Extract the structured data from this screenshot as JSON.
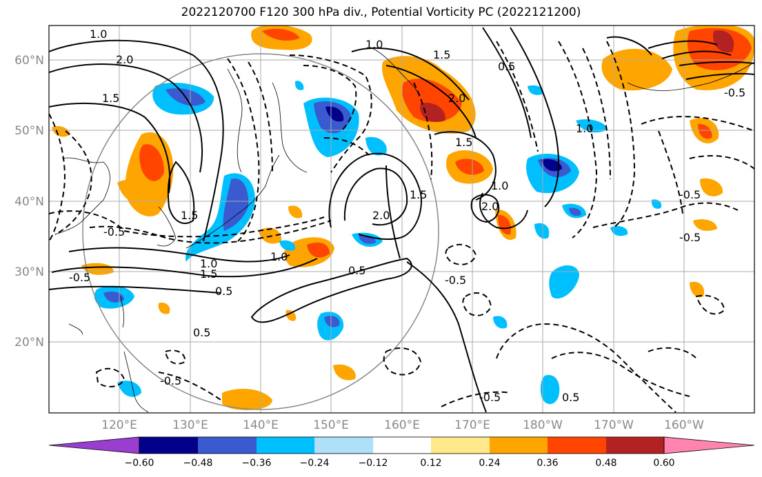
{
  "title": "2022120700 F120 300 hPa div., Potential Vorticity PC (2022121200)",
  "lat_labels": [
    "60°N",
    "50°N",
    "40°N",
    "30°N",
    "20°N"
  ],
  "lon_labels": [
    "120°E",
    "130°E",
    "140°E",
    "150°E",
    "160°E",
    "170°E",
    "180°W",
    "170°W",
    "160°W"
  ],
  "contour_labels": [
    "1.0",
    "1.5",
    "2.0",
    "0.5",
    "-0.5"
  ],
  "colorbar": {
    "ticks": [
      "−0.60",
      "−0.48",
      "−0.36",
      "−0.24",
      "−0.12",
      "0.12",
      "0.24",
      "0.36",
      "0.48",
      "0.60"
    ],
    "colors": [
      "#9a3ed0",
      "#00008b",
      "#3a5bd0",
      "#00bfff",
      "#aee0fa",
      "#ffffff",
      "#ffe98a",
      "#ffa500",
      "#ff4500",
      "#b22222",
      "#ff85b0"
    ]
  }
}
